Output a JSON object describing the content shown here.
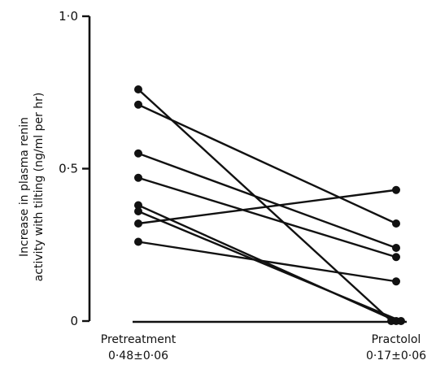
{
  "chart_data": {
    "type": "line",
    "title": "",
    "ylabel_lines": [
      "Increase in plasma renin",
      "activity with tilting (ng/ml per hr)"
    ],
    "xlabel": "",
    "ylim": [
      0,
      1.0
    ],
    "yticks": [
      {
        "value": 0,
        "label": "0"
      },
      {
        "value": 0.5,
        "label": "0·5"
      },
      {
        "value": 1.0,
        "label": "1·0"
      }
    ],
    "categories": [
      {
        "name": "Pretreatment",
        "summary": "0·48±0·06"
      },
      {
        "name": "Practolol",
        "summary": "0·17±0·06"
      }
    ],
    "grid": false,
    "legend": "none",
    "series": [
      {
        "values": [
          0.76,
          0.0
        ]
      },
      {
        "values": [
          0.71,
          0.32
        ]
      },
      {
        "values": [
          0.55,
          0.24
        ]
      },
      {
        "values": [
          0.47,
          0.21
        ]
      },
      {
        "values": [
          0.38,
          0.0
        ]
      },
      {
        "values": [
          0.36,
          0.0
        ]
      },
      {
        "values": [
          0.32,
          0.43
        ]
      },
      {
        "values": [
          0.26,
          0.13
        ]
      }
    ],
    "colors": {
      "line": "#111111",
      "marker": "#111111"
    }
  }
}
